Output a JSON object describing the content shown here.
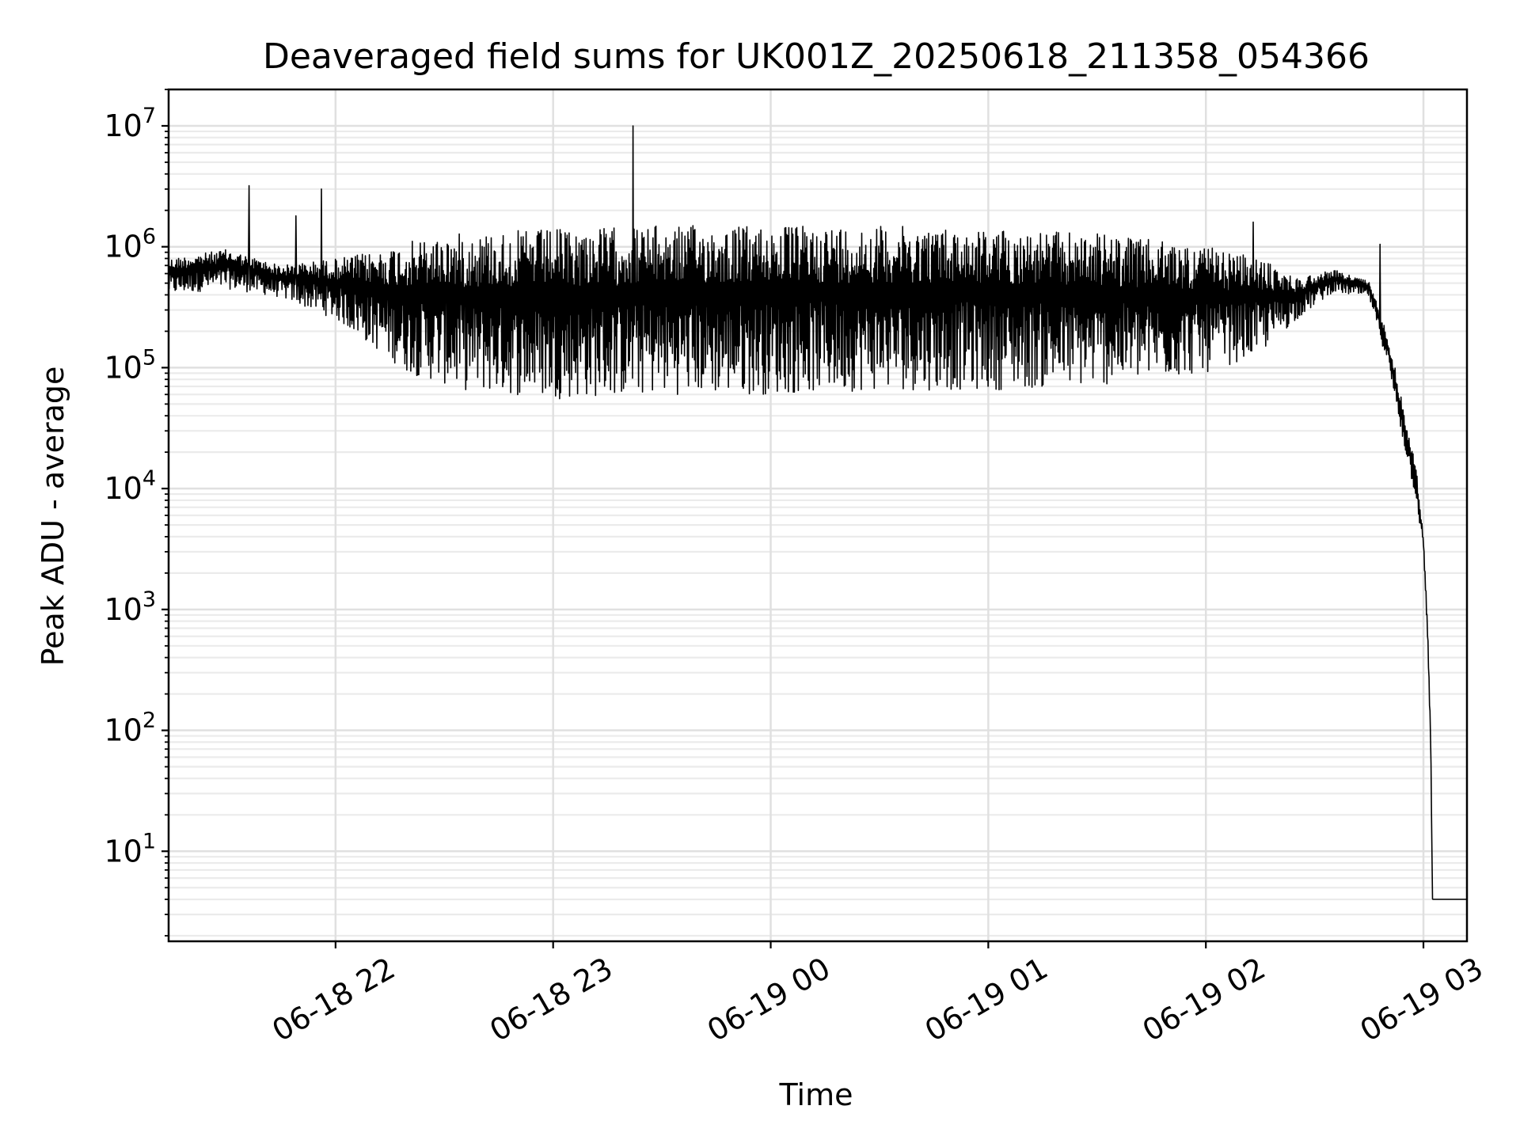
{
  "chart_data": {
    "type": "line",
    "title": "Deaveraged field sums for UK001Z_20250618_211358_054366",
    "xlabel": "Time",
    "ylabel": "Peak ADU - average",
    "yscale": "log",
    "ylim": [
      1.8,
      20000000
    ],
    "xlim": [
      "2025-06-18 21:13:58",
      "2025-06-19 03:12:00"
    ],
    "grid": true,
    "x_ticks": [
      {
        "t": "2025-06-18 22:00",
        "label": "06-18 22"
      },
      {
        "t": "2025-06-18 23:00",
        "label": "06-18 23"
      },
      {
        "t": "2025-06-19 00:00",
        "label": "06-19 00"
      },
      {
        "t": "2025-06-19 01:00",
        "label": "06-19 01"
      },
      {
        "t": "2025-06-19 02:00",
        "label": "06-19 02"
      },
      {
        "t": "2025-06-19 03:00",
        "label": "06-19 03"
      }
    ],
    "y_ticks": [
      {
        "value": 10,
        "base": "10",
        "exp": "1"
      },
      {
        "value": 100,
        "base": "10",
        "exp": "2"
      },
      {
        "value": 1000,
        "base": "10",
        "exp": "3"
      },
      {
        "value": 10000,
        "base": "10",
        "exp": "4"
      },
      {
        "value": 100000,
        "base": "10",
        "exp": "5"
      },
      {
        "value": 1000000,
        "base": "10",
        "exp": "6"
      },
      {
        "value": 10000000,
        "base": "10",
        "exp": "7"
      }
    ],
    "series": [
      {
        "color": "#000000",
        "envelope": [
          {
            "t": "2025-06-18 21:14",
            "upper": 800000,
            "lower": 400000
          },
          {
            "t": "2025-06-18 21:30",
            "upper": 950000,
            "lower": 450000
          },
          {
            "t": "2025-06-18 21:45",
            "upper": 700000,
            "lower": 380000
          },
          {
            "t": "2025-06-18 22:00",
            "upper": 800000,
            "lower": 250000
          },
          {
            "t": "2025-06-18 22:10",
            "upper": 900000,
            "lower": 150000
          },
          {
            "t": "2025-06-18 22:20",
            "upper": 1100000,
            "lower": 90000
          },
          {
            "t": "2025-06-18 22:35",
            "upper": 1300000,
            "lower": 65000
          },
          {
            "t": "2025-06-18 23:00",
            "upper": 1400000,
            "lower": 55000
          },
          {
            "t": "2025-06-18 23:30",
            "upper": 1500000,
            "lower": 60000
          },
          {
            "t": "2025-06-19 00:00",
            "upper": 1500000,
            "lower": 60000
          },
          {
            "t": "2025-06-19 00:30",
            "upper": 1500000,
            "lower": 65000
          },
          {
            "t": "2025-06-19 01:00",
            "upper": 1400000,
            "lower": 65000
          },
          {
            "t": "2025-06-19 01:30",
            "upper": 1300000,
            "lower": 70000
          },
          {
            "t": "2025-06-19 02:00",
            "upper": 1000000,
            "lower": 90000
          },
          {
            "t": "2025-06-19 02:15",
            "upper": 800000,
            "lower": 130000
          },
          {
            "t": "2025-06-19 02:25",
            "upper": 550000,
            "lower": 250000
          },
          {
            "t": "2025-06-19 02:35",
            "upper": 650000,
            "lower": 420000
          },
          {
            "t": "2025-06-19 02:45",
            "upper": 520000,
            "lower": 380000
          },
          {
            "t": "2025-06-19 02:50",
            "upper": 200000,
            "lower": 110000
          },
          {
            "t": "2025-06-19 02:55",
            "upper": 40000,
            "lower": 20000
          },
          {
            "t": "2025-06-19 02:58",
            "upper": 15000,
            "lower": 8000
          },
          {
            "t": "2025-06-19 03:00",
            "upper": 4000,
            "lower": 3000
          },
          {
            "t": "2025-06-19 03:01",
            "upper": 1000,
            "lower": 700
          },
          {
            "t": "2025-06-19 03:02",
            "upper": 100,
            "lower": 70
          },
          {
            "t": "2025-06-19 03:02:30",
            "upper": 4,
            "lower": 4
          },
          {
            "t": "2025-06-19 03:12",
            "upper": 4,
            "lower": 4
          }
        ],
        "spikes": [
          {
            "t": "2025-06-18 21:36",
            "value": 3200000
          },
          {
            "t": "2025-06-18 21:49",
            "value": 1800000
          },
          {
            "t": "2025-06-18 21:56",
            "value": 3000000
          },
          {
            "t": "2025-06-18 23:22",
            "value": 10000000
          },
          {
            "t": "2025-06-19 02:13",
            "value": 1600000
          },
          {
            "t": "2025-06-19 02:48",
            "value": 1050000
          }
        ]
      }
    ]
  }
}
